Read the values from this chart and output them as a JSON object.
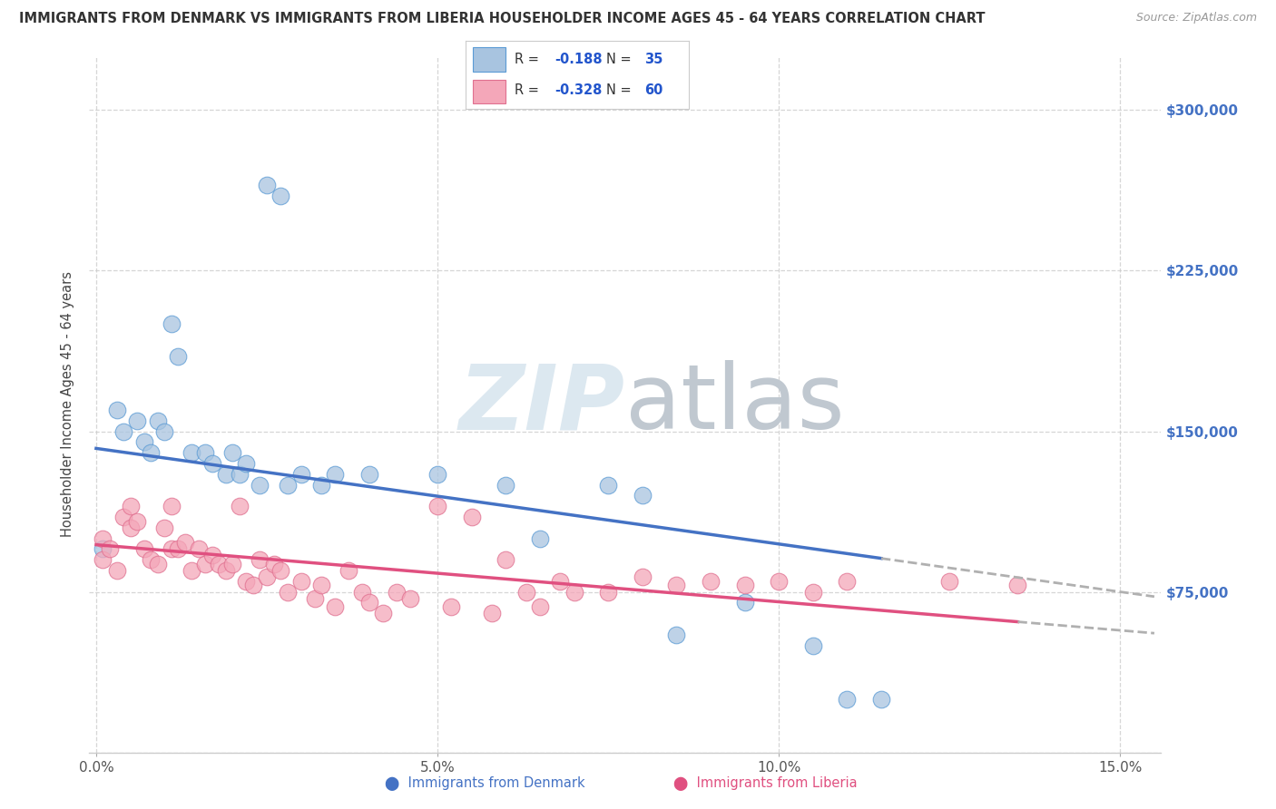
{
  "title": "IMMIGRANTS FROM DENMARK VS IMMIGRANTS FROM LIBERIA HOUSEHOLDER INCOME AGES 45 - 64 YEARS CORRELATION CHART",
  "source": "Source: ZipAtlas.com",
  "ylabel": "Householder Income Ages 45 - 64 years",
  "xlabel_ticks": [
    "0.0%",
    "5.0%",
    "10.0%",
    "15.0%"
  ],
  "xlabel_tick_vals": [
    0.0,
    0.05,
    0.1,
    0.15
  ],
  "ylim": [
    0,
    325000
  ],
  "xlim": [
    -0.001,
    0.156
  ],
  "ytick_vals": [
    0,
    75000,
    150000,
    225000,
    300000
  ],
  "denmark_R": -0.188,
  "denmark_N": 35,
  "liberia_R": -0.328,
  "liberia_N": 60,
  "denmark_color": "#a8c4e0",
  "denmark_edge_color": "#5b9bd5",
  "denmark_line_color": "#4472c4",
  "liberia_color": "#f4a7b9",
  "liberia_edge_color": "#e07090",
  "liberia_line_color": "#e05080",
  "background_color": "#ffffff",
  "grid_color": "#cccccc",
  "watermark_color": "#dce8f0",
  "right_tick_color": "#4472c4",
  "denmark_scatter_x": [
    0.001,
    0.003,
    0.004,
    0.006,
    0.007,
    0.008,
    0.009,
    0.01,
    0.011,
    0.012,
    0.014,
    0.016,
    0.017,
    0.019,
    0.02,
    0.021,
    0.022,
    0.024,
    0.025,
    0.027,
    0.028,
    0.03,
    0.033,
    0.035,
    0.04,
    0.05,
    0.06,
    0.065,
    0.075,
    0.08,
    0.085,
    0.095,
    0.105,
    0.11,
    0.115
  ],
  "denmark_scatter_y": [
    95000,
    160000,
    150000,
    155000,
    145000,
    140000,
    155000,
    150000,
    200000,
    185000,
    140000,
    140000,
    135000,
    130000,
    140000,
    130000,
    135000,
    125000,
    265000,
    260000,
    125000,
    130000,
    125000,
    130000,
    130000,
    130000,
    125000,
    100000,
    125000,
    120000,
    55000,
    70000,
    50000,
    25000,
    25000
  ],
  "liberia_scatter_x": [
    0.001,
    0.001,
    0.002,
    0.003,
    0.004,
    0.005,
    0.005,
    0.006,
    0.007,
    0.008,
    0.009,
    0.01,
    0.011,
    0.011,
    0.012,
    0.013,
    0.014,
    0.015,
    0.016,
    0.017,
    0.018,
    0.019,
    0.02,
    0.021,
    0.022,
    0.023,
    0.024,
    0.025,
    0.026,
    0.027,
    0.028,
    0.03,
    0.032,
    0.033,
    0.035,
    0.037,
    0.039,
    0.04,
    0.042,
    0.044,
    0.046,
    0.05,
    0.052,
    0.055,
    0.058,
    0.06,
    0.063,
    0.065,
    0.068,
    0.07,
    0.075,
    0.08,
    0.085,
    0.09,
    0.095,
    0.1,
    0.105,
    0.11,
    0.125,
    0.135
  ],
  "liberia_scatter_y": [
    100000,
    90000,
    95000,
    85000,
    110000,
    105000,
    115000,
    108000,
    95000,
    90000,
    88000,
    105000,
    95000,
    115000,
    95000,
    98000,
    85000,
    95000,
    88000,
    92000,
    88000,
    85000,
    88000,
    115000,
    80000,
    78000,
    90000,
    82000,
    88000,
    85000,
    75000,
    80000,
    72000,
    78000,
    68000,
    85000,
    75000,
    70000,
    65000,
    75000,
    72000,
    115000,
    68000,
    110000,
    65000,
    90000,
    75000,
    68000,
    80000,
    75000,
    75000,
    82000,
    78000,
    80000,
    78000,
    80000,
    75000,
    80000,
    80000,
    78000
  ]
}
